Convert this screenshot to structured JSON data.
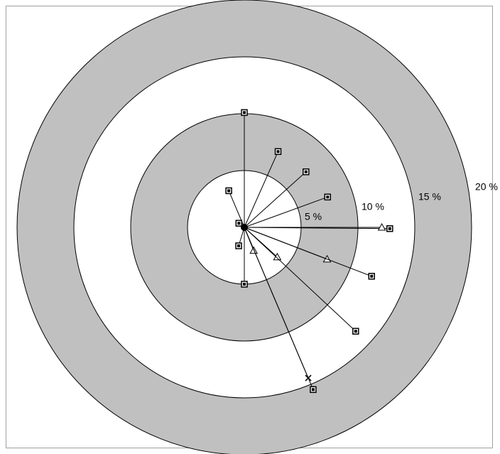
{
  "chart_data": {
    "type": "target",
    "rticks": [
      {
        "value": 5,
        "label": "5 %"
      },
      {
        "value": 10,
        "label": "10 %"
      },
      {
        "value": 15,
        "label": "15 %"
      },
      {
        "value": 20,
        "label": "20 %"
      }
    ],
    "rlim": [
      0,
      20
    ],
    "ring_fills": [
      "#ffffff",
      "#c0c0c0",
      "#ffffff",
      "#c0c0c0"
    ],
    "r": [
      10.1,
      7.3,
      7.3,
      7.8,
      3.5,
      12.8,
      12.1,
      7.8,
      12.0,
      3.9,
      13.4,
      2.2,
      14.4,
      15.5,
      5.0,
      1.7,
      0.6
    ],
    "theta": [
      90,
      66,
      42,
      20,
      113,
      -0.5,
      0,
      -21,
      -21,
      -42,
      -43,
      -68,
      -67,
      -67,
      -90,
      -107,
      143
    ],
    "markers": [
      "square",
      "square",
      "square",
      "square",
      "square",
      "square",
      "triangle",
      "triangle",
      "square",
      "triangle",
      "square",
      "triangle",
      "x",
      "square",
      "square",
      "square",
      "square"
    ]
  }
}
